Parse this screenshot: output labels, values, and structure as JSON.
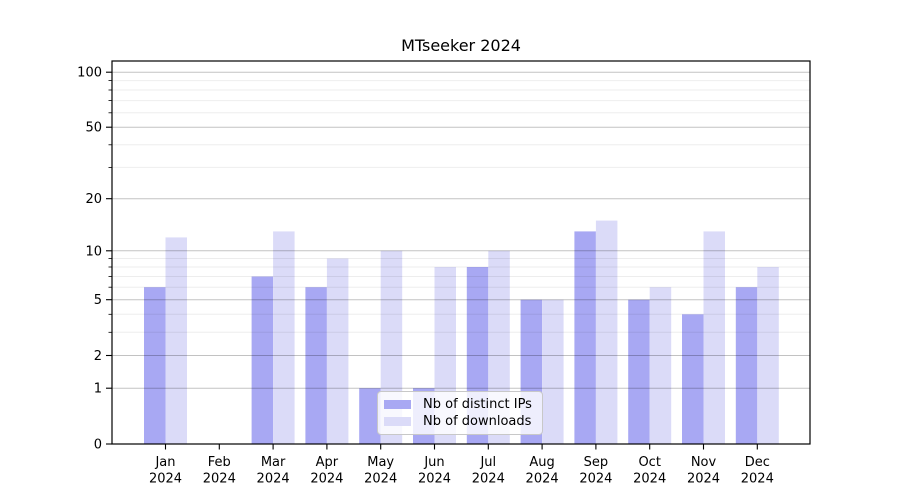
{
  "chart_data": {
    "type": "bar",
    "title": "MTseeker 2024",
    "year": "2024",
    "months": [
      "Jan",
      "Feb",
      "Mar",
      "Apr",
      "May",
      "Jun",
      "Jul",
      "Aug",
      "Sep",
      "Oct",
      "Nov",
      "Dec"
    ],
    "categories": [
      "Jan 2024",
      "Feb 2024",
      "Mar 2024",
      "Apr 2024",
      "May 2024",
      "Jun 2024",
      "Jul 2024",
      "Aug 2024",
      "Sep 2024",
      "Oct 2024",
      "Nov 2024",
      "Dec 2024"
    ],
    "series": [
      {
        "name": "Nb of distinct IPs",
        "color": "#a8a8f3",
        "values": [
          6,
          0,
          7,
          6,
          1,
          1,
          8,
          5,
          13,
          5,
          4,
          6
        ]
      },
      {
        "name": "Nb of downloads",
        "color": "#dbdbf8",
        "values": [
          12,
          0,
          13,
          9,
          10,
          8,
          10,
          5,
          15,
          6,
          13,
          8
        ]
      }
    ],
    "yscale": "log1p",
    "ylim": [
      0,
      115
    ],
    "y_ticks": [
      0,
      1,
      2,
      5,
      10,
      20,
      50,
      100
    ],
    "y_minor_gridlines": [
      3,
      4,
      6,
      7,
      8,
      9,
      30,
      40,
      60,
      70,
      80,
      90
    ],
    "grid": {
      "grid_on": true,
      "major_color": "rgba(0,0,0,0.24)",
      "minor_color": "rgba(0,0,0,0.07)"
    },
    "axis_color": "#000000",
    "legend": {
      "position": "lower center",
      "labels": [
        "Nb of distinct IPs",
        "Nb of downloads"
      ]
    }
  }
}
